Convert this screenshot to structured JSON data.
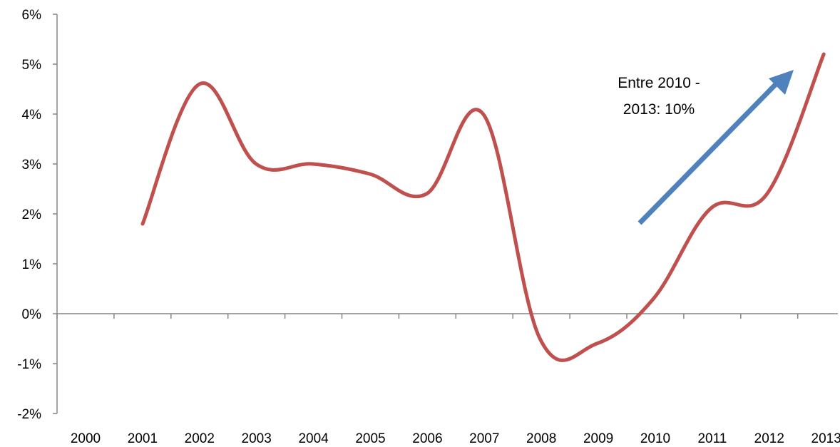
{
  "chart_data": {
    "type": "line",
    "title": "",
    "xlabel": "",
    "ylabel": "",
    "categories": [
      "2000",
      "2001",
      "2002",
      "2003",
      "2004",
      "2005",
      "2006",
      "2007",
      "2008",
      "2009",
      "2010",
      "2011",
      "2012",
      "2013"
    ],
    "y_ticks": [
      "6%",
      "5%",
      "4%",
      "3%",
      "2%",
      "1%",
      "0%",
      "-1%",
      "-2%"
    ],
    "ylim": [
      -2,
      6
    ],
    "grid": false,
    "legend": "none",
    "series": [
      {
        "color": "#c0504d",
        "values": [
          null,
          1.8,
          4.6,
          3.0,
          3.0,
          2.8,
          2.4,
          4.0,
          -0.5,
          -0.6,
          0.3,
          2.1,
          2.4,
          5.2
        ]
      }
    ],
    "annotations": [
      {
        "line1": "Entre 2010 -",
        "line2": "2013: 10%"
      }
    ],
    "arrow_color": "#4f81bd"
  }
}
